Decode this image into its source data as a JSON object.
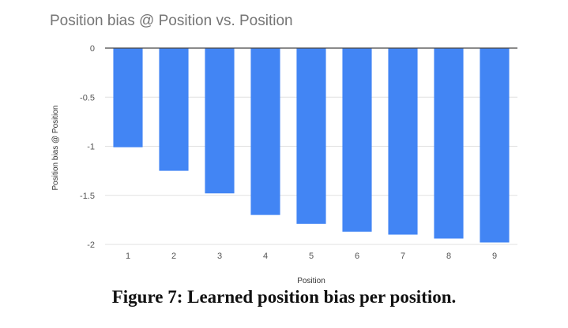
{
  "caption": "Figure 7: Learned position bias per position.",
  "chart_data": {
    "type": "bar",
    "title": "Position bias @ Position vs. Position",
    "xlabel": "Position",
    "ylabel": "Position bias @ Position",
    "categories": [
      "1",
      "2",
      "3",
      "4",
      "5",
      "6",
      "7",
      "8",
      "9"
    ],
    "values": [
      -1.01,
      -1.25,
      -1.48,
      -1.7,
      -1.79,
      -1.87,
      -1.9,
      -1.94,
      -1.98
    ],
    "ylim": [
      -2,
      0
    ],
    "yticks": [
      0,
      -0.5,
      -1,
      -1.5,
      -2
    ],
    "ytick_labels": [
      "0",
      "-0.5",
      "-1",
      "-1.5",
      "-2"
    ],
    "grid": true,
    "legend": "none",
    "bar_color": "#4285f4"
  }
}
